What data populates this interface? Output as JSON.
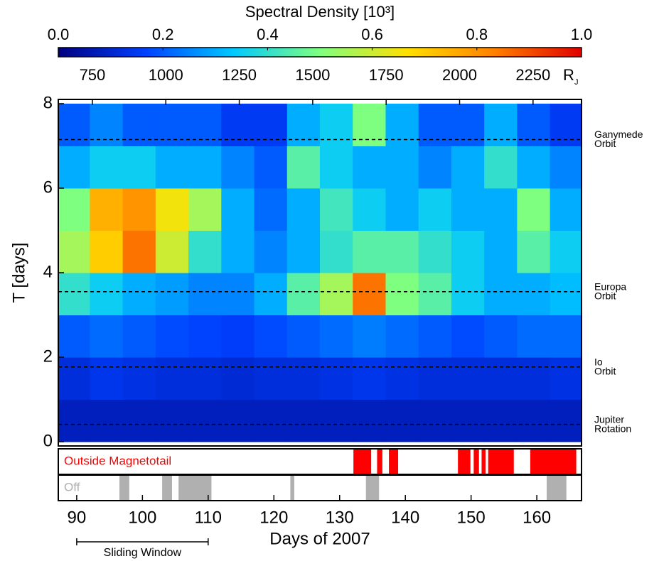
{
  "chart_data": {
    "type": "heatmap",
    "colorbar": {
      "title": "Spectral Density [10³]",
      "lim": [
        0,
        1
      ],
      "ticks": [
        {
          "value": 0,
          "label": "0.0"
        },
        0.2,
        0.4,
        0.6,
        0.8,
        {
          "value": 1,
          "label": "1.0"
        }
      ],
      "colormap": [
        "#00007f",
        "#0040ff",
        "#00c8ff",
        "#7fff80",
        "#ffe000",
        "#ff8000",
        "#e00000"
      ]
    },
    "x_label": "Days of 2007",
    "y_label": "T [days]",
    "xlim": [
      87.2,
      166.8
    ],
    "xticks": [
      90,
      100,
      110,
      120,
      130,
      140,
      150,
      160
    ],
    "ylim": [
      -0.1,
      8.1
    ],
    "yticks": [
      0,
      2,
      4,
      6,
      8
    ],
    "x2_label": "R",
    "x2_label_sub": "J",
    "x2lim": [
      634,
      2415
    ],
    "x2ticks": [
      750,
      1000,
      1250,
      1500,
      1750,
      2000,
      2250
    ],
    "x_edges": [
      87,
      92,
      97,
      102,
      107,
      112,
      117,
      122,
      127,
      132,
      137,
      142,
      147,
      152,
      157,
      162,
      167
    ],
    "y_edges": [
      0,
      1,
      2,
      3,
      4,
      5,
      6,
      7,
      8
    ],
    "z": [
      [
        0.08,
        0.08,
        0.08,
        0.08,
        0.08,
        0.08,
        0.08,
        0.08,
        0.08,
        0.08,
        0.08,
        0.08,
        0.08,
        0.08,
        0.08,
        0.08
      ],
      [
        0.12,
        0.14,
        0.13,
        0.12,
        0.12,
        0.11,
        0.12,
        0.12,
        0.13,
        0.14,
        0.13,
        0.12,
        0.12,
        0.12,
        0.12,
        0.13
      ],
      [
        0.2,
        0.22,
        0.2,
        0.18,
        0.17,
        0.16,
        0.18,
        0.2,
        0.22,
        0.24,
        0.22,
        0.2,
        0.18,
        0.2,
        0.22,
        0.22
      ],
      [
        0.4,
        0.35,
        0.3,
        0.28,
        0.25,
        0.25,
        0.3,
        0.45,
        0.55,
        0.85,
        0.5,
        0.45,
        0.35,
        0.3,
        0.3,
        0.32
      ],
      [
        0.55,
        0.7,
        0.85,
        0.6,
        0.4,
        0.3,
        0.25,
        0.3,
        0.4,
        0.45,
        0.45,
        0.4,
        0.35,
        0.3,
        0.45,
        0.35
      ],
      [
        0.5,
        0.75,
        0.8,
        0.65,
        0.55,
        0.3,
        0.22,
        0.3,
        0.42,
        0.35,
        0.3,
        0.35,
        0.3,
        0.3,
        0.5,
        0.3
      ],
      [
        0.3,
        0.35,
        0.35,
        0.3,
        0.3,
        0.25,
        0.2,
        0.45,
        0.35,
        0.3,
        0.3,
        0.25,
        0.3,
        0.4,
        0.3,
        0.25
      ],
      [
        0.2,
        0.25,
        0.2,
        0.2,
        0.2,
        0.15,
        0.15,
        0.3,
        0.35,
        0.5,
        0.3,
        0.2,
        0.2,
        0.3,
        0.2,
        0.15
      ]
    ],
    "reference_lines": [
      {
        "lines": [
          "Ganymede",
          "Orbit"
        ],
        "value": 7.15
      },
      {
        "lines": [
          "Europa",
          "Orbit"
        ],
        "value": 3.55
      },
      {
        "lines": [
          "Io",
          "Orbit"
        ],
        "value": 1.77
      },
      {
        "lines": [
          "Jupiter",
          "Rotation"
        ],
        "value": 0.41
      }
    ],
    "bands": [
      {
        "label": "Outside Magnetotail",
        "color": "#ff0000",
        "intervals": [
          [
            132.1,
            134.8
          ],
          [
            135.7,
            136.5
          ],
          [
            137.5,
            138.9
          ],
          [
            148,
            149.9
          ],
          [
            150.4,
            151.2
          ],
          [
            151.6,
            152.2
          ],
          [
            152.6,
            156.5
          ],
          [
            159,
            166
          ]
        ]
      },
      {
        "label": "Off",
        "color": "#b0b0b0",
        "intervals": [
          [
            96.5,
            98
          ],
          [
            103,
            104.5
          ],
          [
            105.5,
            110.5
          ],
          [
            122.5,
            123.1
          ],
          [
            134,
            136
          ],
          [
            161.5,
            164.5
          ]
        ]
      }
    ],
    "sliding_window": {
      "label": "Sliding Window",
      "range": [
        90,
        110
      ]
    }
  }
}
